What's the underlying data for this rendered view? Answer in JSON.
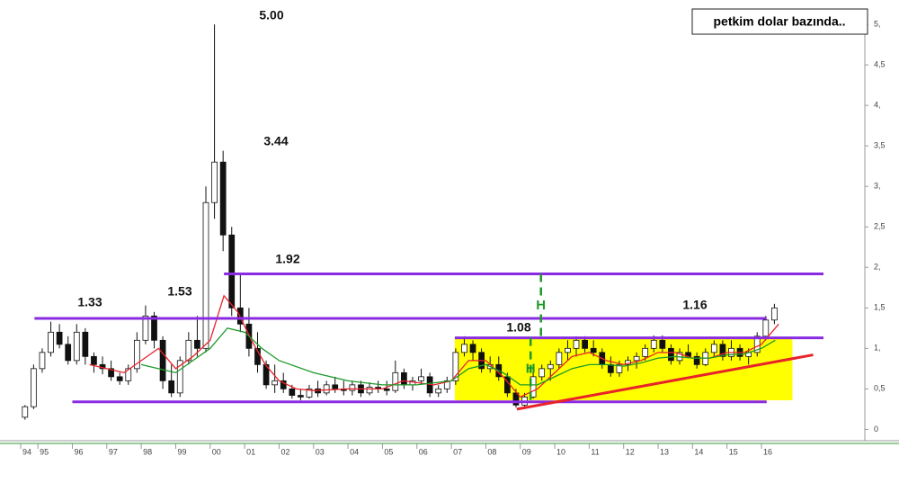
{
  "chart_data": {
    "type": "candlestick",
    "title": "petkim dolar bazında..",
    "x": [
      1994.625,
      1994.875,
      1995.125,
      1995.375,
      1995.625,
      1995.875,
      1996.125,
      1996.375,
      1996.625,
      1996.875,
      1997.125,
      1997.375,
      1997.625,
      1997.875,
      1998.125,
      1998.375,
      1998.625,
      1998.875,
      1999.125,
      1999.375,
      1999.625,
      1999.875,
      2000.125,
      2000.375,
      2000.625,
      2000.875,
      2001.125,
      2001.375,
      2001.625,
      2001.875,
      2002.125,
      2002.375,
      2002.625,
      2002.875,
      2003.125,
      2003.375,
      2003.625,
      2003.875,
      2004.125,
      2004.375,
      2004.625,
      2004.875,
      2005.125,
      2005.375,
      2005.625,
      2005.875,
      2006.125,
      2006.375,
      2006.625,
      2006.875,
      2007.125,
      2007.375,
      2007.625,
      2007.875,
      2008.125,
      2008.375,
      2008.625,
      2008.875,
      2009.125,
      2009.375,
      2009.625,
      2009.875,
      2010.125,
      2010.375,
      2010.625,
      2010.875,
      2011.125,
      2011.375,
      2011.625,
      2011.875,
      2012.125,
      2012.375,
      2012.625,
      2012.875,
      2013.125,
      2013.375,
      2013.625,
      2013.875,
      2014.125,
      2014.375,
      2014.625,
      2014.875,
      2015.125,
      2015.375,
      2015.625,
      2015.875,
      2016.125,
      2016.375
    ],
    "ohlc": [
      [
        0.15,
        0.3,
        0.12,
        0.28
      ],
      [
        0.28,
        0.8,
        0.25,
        0.75
      ],
      [
        0.75,
        1.0,
        0.7,
        0.95
      ],
      [
        0.95,
        1.33,
        0.9,
        1.2
      ],
      [
        1.2,
        1.3,
        1.0,
        1.05
      ],
      [
        1.05,
        1.15,
        0.8,
        0.85
      ],
      [
        0.85,
        1.3,
        0.8,
        1.2
      ],
      [
        1.2,
        1.25,
        0.8,
        0.9
      ],
      [
        0.9,
        0.95,
        0.7,
        0.8
      ],
      [
        0.8,
        0.9,
        0.68,
        0.75
      ],
      [
        0.75,
        0.85,
        0.6,
        0.65
      ],
      [
        0.65,
        0.7,
        0.55,
        0.6
      ],
      [
        0.6,
        0.8,
        0.55,
        0.75
      ],
      [
        0.75,
        1.2,
        0.7,
        1.1
      ],
      [
        1.1,
        1.53,
        1.05,
        1.4
      ],
      [
        1.4,
        1.45,
        1.0,
        1.1
      ],
      [
        1.1,
        1.15,
        0.5,
        0.6
      ],
      [
        0.6,
        0.8,
        0.4,
        0.45
      ],
      [
        0.45,
        0.9,
        0.4,
        0.85
      ],
      [
        0.85,
        1.2,
        0.8,
        1.1
      ],
      [
        1.1,
        1.4,
        0.9,
        1.0
      ],
      [
        1.0,
        3.0,
        0.95,
        2.8
      ],
      [
        2.8,
        5.0,
        2.6,
        3.3
      ],
      [
        3.3,
        3.44,
        2.2,
        2.4
      ],
      [
        2.4,
        2.5,
        1.4,
        1.5
      ],
      [
        1.5,
        1.92,
        1.2,
        1.3
      ],
      [
        1.3,
        1.5,
        0.9,
        1.0
      ],
      [
        1.0,
        1.2,
        0.7,
        0.8
      ],
      [
        0.8,
        0.85,
        0.5,
        0.55
      ],
      [
        0.55,
        0.8,
        0.45,
        0.6
      ],
      [
        0.6,
        0.7,
        0.45,
        0.5
      ],
      [
        0.5,
        0.55,
        0.38,
        0.42
      ],
      [
        0.42,
        0.5,
        0.36,
        0.4
      ],
      [
        0.4,
        0.55,
        0.38,
        0.5
      ],
      [
        0.5,
        0.6,
        0.4,
        0.45
      ],
      [
        0.45,
        0.6,
        0.42,
        0.55
      ],
      [
        0.55,
        0.65,
        0.45,
        0.5
      ],
      [
        0.5,
        0.6,
        0.42,
        0.48
      ],
      [
        0.48,
        0.6,
        0.42,
        0.55
      ],
      [
        0.55,
        0.6,
        0.4,
        0.45
      ],
      [
        0.45,
        0.58,
        0.42,
        0.52
      ],
      [
        0.52,
        0.6,
        0.45,
        0.5
      ],
      [
        0.5,
        0.6,
        0.42,
        0.48
      ],
      [
        0.48,
        0.85,
        0.45,
        0.7
      ],
      [
        0.7,
        0.75,
        0.5,
        0.55
      ],
      [
        0.55,
        0.65,
        0.48,
        0.6
      ],
      [
        0.6,
        0.75,
        0.55,
        0.65
      ],
      [
        0.65,
        0.7,
        0.4,
        0.45
      ],
      [
        0.45,
        0.55,
        0.4,
        0.5
      ],
      [
        0.5,
        0.65,
        0.45,
        0.6
      ],
      [
        0.6,
        1.0,
        0.55,
        0.95
      ],
      [
        0.95,
        1.15,
        0.9,
        1.05
      ],
      [
        1.05,
        1.1,
        0.85,
        0.95
      ],
      [
        0.95,
        1.0,
        0.7,
        0.75
      ],
      [
        0.75,
        0.9,
        0.7,
        0.8
      ],
      [
        0.8,
        0.9,
        0.6,
        0.65
      ],
      [
        0.65,
        0.7,
        0.4,
        0.45
      ],
      [
        0.45,
        0.5,
        0.27,
        0.3
      ],
      [
        0.3,
        0.45,
        0.25,
        0.4
      ],
      [
        0.4,
        0.7,
        0.38,
        0.65
      ],
      [
        0.65,
        0.8,
        0.6,
        0.75
      ],
      [
        0.75,
        0.85,
        0.6,
        0.8
      ],
      [
        0.8,
        1.0,
        0.75,
        0.95
      ],
      [
        0.95,
        1.1,
        0.85,
        1.0
      ],
      [
        1.0,
        1.15,
        0.9,
        1.1
      ],
      [
        1.1,
        1.15,
        0.95,
        1.0
      ],
      [
        1.0,
        1.1,
        0.9,
        0.95
      ],
      [
        0.95,
        1.0,
        0.75,
        0.8
      ],
      [
        0.8,
        0.9,
        0.65,
        0.7
      ],
      [
        0.7,
        0.85,
        0.65,
        0.8
      ],
      [
        0.8,
        0.9,
        0.72,
        0.85
      ],
      [
        0.85,
        0.95,
        0.75,
        0.9
      ],
      [
        0.9,
        1.05,
        0.85,
        1.0
      ],
      [
        1.0,
        1.16,
        0.95,
        1.1
      ],
      [
        1.1,
        1.16,
        0.95,
        1.0
      ],
      [
        1.0,
        1.05,
        0.8,
        0.85
      ],
      [
        0.85,
        1.0,
        0.8,
        0.95
      ],
      [
        0.95,
        1.05,
        0.88,
        0.9
      ],
      [
        0.9,
        0.95,
        0.75,
        0.8
      ],
      [
        0.8,
        1.0,
        0.78,
        0.95
      ],
      [
        0.95,
        1.1,
        0.9,
        1.05
      ],
      [
        1.05,
        1.1,
        0.85,
        0.9
      ],
      [
        0.9,
        1.1,
        0.85,
        1.0
      ],
      [
        1.0,
        1.05,
        0.85,
        0.9
      ],
      [
        0.9,
        1.0,
        0.8,
        0.95
      ],
      [
        0.95,
        1.2,
        0.9,
        1.15
      ],
      [
        1.15,
        1.4,
        1.1,
        1.35
      ],
      [
        1.35,
        1.55,
        1.3,
        1.5
      ]
    ],
    "series": [
      {
        "color": "#e8232a",
        "x": [
          1996.5,
          1997,
          1997.5,
          1998,
          1998.5,
          1999,
          1999.5,
          2000,
          2000.4,
          2000.8,
          2001.2,
          2001.6,
          2002,
          2002.5,
          2003,
          2004,
          2005,
          2005.6,
          2006.5,
          2007,
          2007.5,
          2008,
          2008.5,
          2009,
          2009.5,
          2010,
          2010.5,
          2011,
          2011.5,
          2012,
          2012.5,
          2013,
          2013.5,
          2014,
          2014.5,
          2015,
          2015.5,
          2016,
          2016.5
        ],
        "values": [
          0.8,
          0.75,
          0.7,
          0.85,
          1.0,
          0.75,
          0.9,
          1.1,
          1.65,
          1.45,
          1.1,
          0.8,
          0.6,
          0.5,
          0.48,
          0.5,
          0.5,
          0.6,
          0.55,
          0.6,
          0.85,
          0.85,
          0.65,
          0.4,
          0.5,
          0.7,
          0.9,
          0.95,
          0.85,
          0.8,
          0.85,
          0.95,
          0.95,
          0.88,
          0.88,
          0.95,
          0.95,
          1.05,
          1.3
        ]
      },
      {
        "color": "#1e9a2a",
        "x": [
          1998,
          1998.5,
          1999,
          1999.5,
          2000,
          2000.5,
          2001,
          2001.5,
          2002,
          2003,
          2004,
          2005,
          2006,
          2007,
          2007.5,
          2008,
          2008.5,
          2009,
          2009.5,
          2010,
          2010.5,
          2011,
          2011.5,
          2012,
          2012.5,
          2013,
          2013.5,
          2014,
          2014.5,
          2015,
          2015.5,
          2016,
          2016.4
        ],
        "values": [
          0.8,
          0.75,
          0.7,
          0.85,
          1.0,
          1.25,
          1.2,
          1.0,
          0.85,
          0.7,
          0.6,
          0.55,
          0.55,
          0.6,
          0.75,
          0.8,
          0.7,
          0.55,
          0.55,
          0.65,
          0.75,
          0.8,
          0.8,
          0.78,
          0.82,
          0.88,
          0.9,
          0.88,
          0.88,
          0.92,
          0.93,
          1.0,
          1.1
        ]
      }
    ],
    "zones": [
      {
        "x": [
          2007.1,
          2016.9
        ],
        "y": [
          0.36,
          1.13
        ],
        "color": "#ffff00"
      }
    ],
    "levels": [
      {
        "value": 1.92,
        "x": [
          2000.4,
          2017.8
        ]
      },
      {
        "value": 1.37,
        "x": [
          1994.9,
          2016.15
        ]
      },
      {
        "value": 1.13,
        "x": [
          2007.1,
          2017.8
        ]
      },
      {
        "value": 0.34,
        "x": [
          1996,
          2016.15
        ]
      }
    ],
    "level_color": "#8a2be2",
    "trend": {
      "x": [
        2008.9,
        2017.5
      ],
      "y": [
        0.25,
        0.92
      ],
      "color": "#e8232a"
    },
    "measures": [
      {
        "label": "H",
        "x": 2009.6,
        "y": [
          1.13,
          1.92
        ]
      },
      {
        "label": "H",
        "x": 2009.3,
        "y": [
          0.36,
          1.13
        ]
      }
    ],
    "measure_color": "#1e9a2a",
    "annotations": [
      "5.00",
      "3.44",
      "1.92",
      "1.33",
      "1.53",
      "1.08",
      "1.16"
    ],
    "xlim": [
      1993.9,
      2019.0
    ],
    "xticks": [
      {
        "value": 1994.5,
        "label": "94"
      },
      {
        "value": 1995,
        "label": "95"
      },
      {
        "value": 1996,
        "label": "96"
      },
      {
        "value": 1997,
        "label": "97"
      },
      {
        "value": 1998,
        "label": "98"
      },
      {
        "value": 1999,
        "label": "99"
      },
      {
        "value": 2000,
        "label": "00"
      },
      {
        "value": 2001,
        "label": "01"
      },
      {
        "value": 2002,
        "label": "02"
      },
      {
        "value": 2003,
        "label": "03"
      },
      {
        "value": 2004,
        "label": "04"
      },
      {
        "value": 2005,
        "label": "05"
      },
      {
        "value": 2006,
        "label": "06"
      },
      {
        "value": 2007,
        "label": "07"
      },
      {
        "value": 2008,
        "label": "08"
      },
      {
        "value": 2009,
        "label": "09"
      },
      {
        "value": 2010,
        "label": "10"
      },
      {
        "value": 2011,
        "label": "11"
      },
      {
        "value": 2012,
        "label": "12"
      },
      {
        "value": 2013,
        "label": "13"
      },
      {
        "value": 2014,
        "label": "14"
      },
      {
        "value": 2015,
        "label": "15"
      },
      {
        "value": 2016,
        "label": "16"
      }
    ],
    "ylim": [
      -0.14,
      5.19
    ],
    "yticks": [
      0,
      {
        "value": 0.5,
        "label": "0,5"
      },
      {
        "value": 1,
        "label": "1,"
      },
      {
        "value": 1.5,
        "label": "1,5"
      },
      {
        "value": 2,
        "label": "2,"
      },
      {
        "value": 2.5,
        "label": "2,5"
      },
      {
        "value": 3,
        "label": "3,"
      },
      {
        "value": 3.5,
        "label": "3,5"
      },
      {
        "value": 4,
        "label": "4,"
      },
      {
        "value": 4.5,
        "label": "4,5"
      },
      {
        "value": 5,
        "label": "5,"
      }
    ]
  }
}
